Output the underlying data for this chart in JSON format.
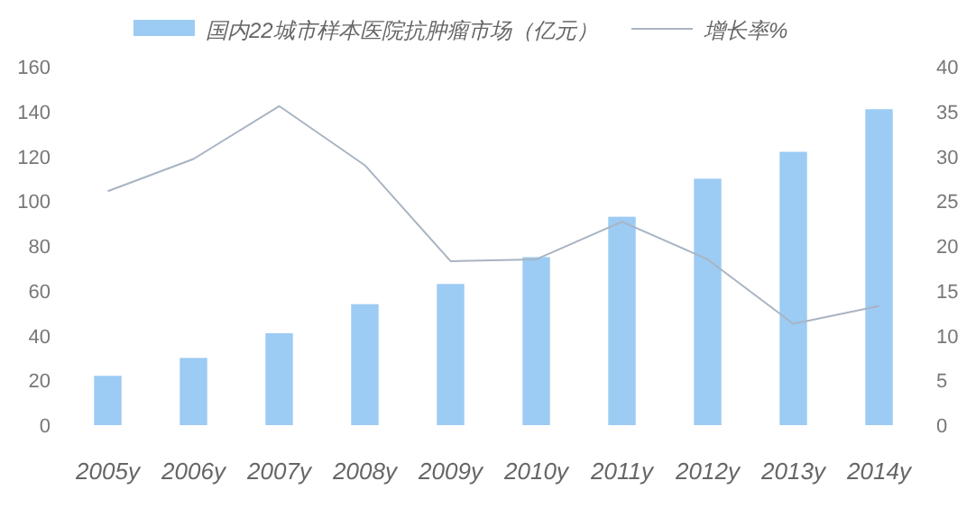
{
  "chart_data": {
    "type": "bar",
    "categories": [
      "2005y",
      "2006y",
      "2007y",
      "2008y",
      "2009y",
      "2010y",
      "2011y",
      "2012y",
      "2013y",
      "2014y"
    ],
    "series": [
      {
        "name": "国内22城市样本医院抗肿瘤市场（亿元）",
        "color": "#9ccbf3",
        "values": [
          22,
          30,
          41,
          54,
          63,
          75,
          93,
          110,
          122,
          141
        ]
      },
      {
        "name": "增长率%",
        "type": "line",
        "axis": "y2",
        "color": "#a9b4c2",
        "values": [
          26.1,
          29.7,
          35.6,
          29,
          18.3,
          18.5,
          22.7,
          18.5,
          11.3,
          13.3
        ]
      }
    ],
    "ylim": [
      0,
      160
    ],
    "yticks": [
      0,
      20,
      40,
      60,
      80,
      100,
      120,
      140,
      160
    ],
    "y2lim": [
      0,
      40
    ],
    "y2ticks": [
      0,
      5,
      10,
      15,
      20,
      25,
      30,
      35,
      40
    ],
    "legend": "top",
    "grid": false
  }
}
